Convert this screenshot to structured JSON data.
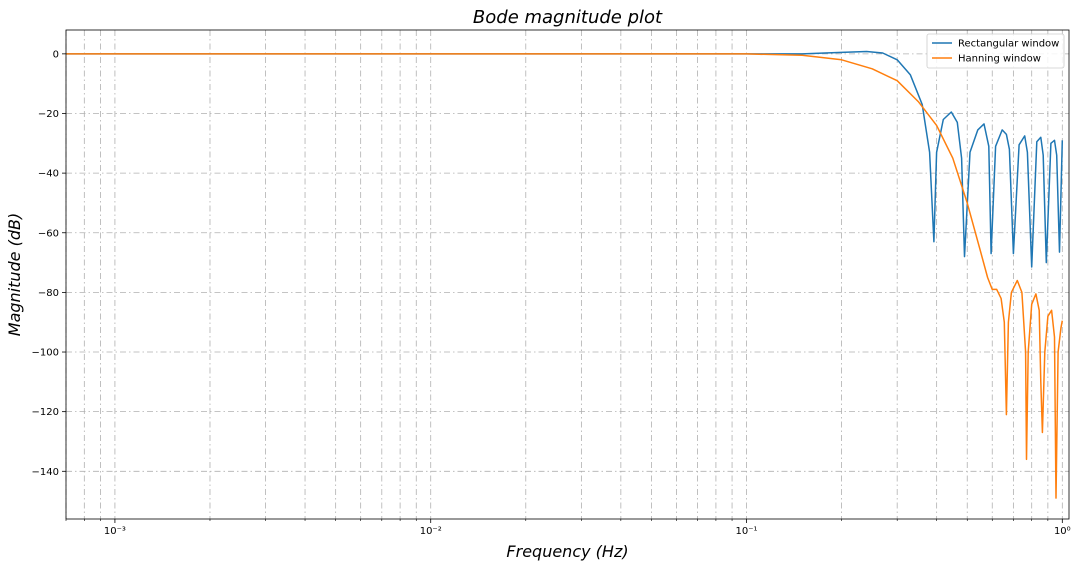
{
  "chart_data": {
    "type": "line",
    "title": "Bode magnitude plot",
    "xlabel": "Frequency (Hz)",
    "ylabel": "Magnitude (dB)",
    "x_scale": "log",
    "xlim": [
      0.0007,
      1.05
    ],
    "ylim": [
      -156,
      8
    ],
    "grid": true,
    "grid_style": "dashdot",
    "legend_position": "top-right",
    "x_ticks": [
      {
        "value": 0.001,
        "label": "10⁻³"
      },
      {
        "value": 0.01,
        "label": "10⁻²"
      },
      {
        "value": 0.1,
        "label": "10⁻¹"
      },
      {
        "value": 1,
        "label": "10⁰"
      }
    ],
    "y_ticks": [
      {
        "value": 0,
        "label": "0"
      },
      {
        "value": -20,
        "label": "−20"
      },
      {
        "value": -40,
        "label": "−40"
      },
      {
        "value": -60,
        "label": "−60"
      },
      {
        "value": -80,
        "label": "−80"
      },
      {
        "value": -100,
        "label": "−100"
      },
      {
        "value": -120,
        "label": "−120"
      },
      {
        "value": -140,
        "label": "−140"
      }
    ],
    "series": [
      {
        "name": "Rectangular window",
        "color": "#1f77b4",
        "x": [
          0.0007,
          0.001,
          0.01,
          0.1,
          0.15,
          0.2,
          0.24,
          0.27,
          0.3,
          0.33,
          0.36,
          0.38,
          0.392,
          0.4,
          0.42,
          0.445,
          0.465,
          0.48,
          0.49,
          0.51,
          0.54,
          0.565,
          0.585,
          0.595,
          0.615,
          0.645,
          0.665,
          0.68,
          0.7,
          0.73,
          0.76,
          0.775,
          0.8,
          0.83,
          0.855,
          0.87,
          0.89,
          0.92,
          0.945,
          0.96,
          0.98,
          1.0
        ],
        "y": [
          0,
          0,
          0,
          0,
          0,
          0.5,
          0.8,
          0.3,
          -2,
          -7,
          -17,
          -33,
          -63,
          -33,
          -22,
          -19.5,
          -23,
          -35,
          -68,
          -33,
          -25.5,
          -23.5,
          -31,
          -67,
          -31,
          -25.5,
          -27,
          -32,
          -67,
          -30.5,
          -27.5,
          -33,
          -71.5,
          -29.5,
          -28,
          -34,
          -70,
          -30,
          -29,
          -34,
          -66.5,
          -29
        ]
      },
      {
        "name": "Hanning window",
        "color": "#ff7f0e",
        "x": [
          0.0007,
          0.001,
          0.01,
          0.1,
          0.15,
          0.2,
          0.25,
          0.3,
          0.35,
          0.4,
          0.45,
          0.5,
          0.55,
          0.58,
          0.6,
          0.62,
          0.64,
          0.655,
          0.665,
          0.675,
          0.69,
          0.72,
          0.745,
          0.765,
          0.77,
          0.78,
          0.8,
          0.825,
          0.845,
          0.855,
          0.865,
          0.88,
          0.9,
          0.925,
          0.945,
          0.955,
          0.97,
          0.99,
          1.0
        ],
        "y": [
          0,
          0,
          0,
          0,
          -0.5,
          -2,
          -5,
          -9,
          -16,
          -24,
          -35,
          -50,
          -66,
          -75,
          -79,
          -79,
          -82,
          -90,
          -121,
          -90,
          -80,
          -76,
          -80,
          -100,
          -136,
          -100,
          -84,
          -80.5,
          -86,
          -110,
          -127,
          -100,
          -88,
          -86,
          -95,
          -149,
          -100,
          -92,
          -89.5
        ]
      }
    ]
  }
}
